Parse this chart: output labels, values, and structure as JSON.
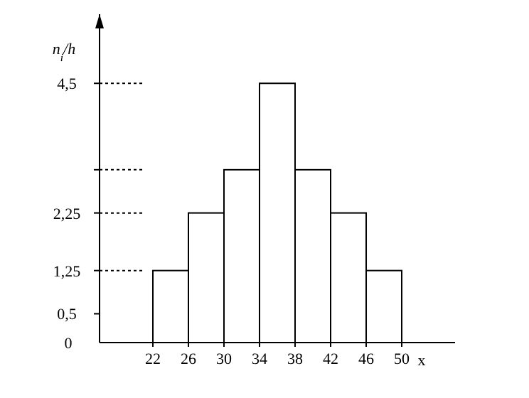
{
  "chart_data": {
    "type": "histogram",
    "xlabel": "x",
    "ylabel": "n$_{i}$/h",
    "bins": [
      22,
      26,
      30,
      34,
      38,
      42,
      46,
      50
    ],
    "values": [
      1.25,
      2.25,
      3,
      4.5,
      3,
      2.25,
      1.25
    ],
    "color": "#ffffff",
    "xlim": [
      16,
      56
    ],
    "xticks": [
      22,
      26,
      30,
      34,
      38,
      42,
      46,
      50
    ],
    "ylim": [
      0,
      5.7
    ],
    "ref_lines": [
      {
        "axis": "y",
        "value": 1.25,
        "line_style": "dotted"
      },
      {
        "axis": "y",
        "value": 2.25,
        "line_style": "dotted"
      },
      {
        "axis": "y",
        "value": 3,
        "line_style": "dotted"
      },
      {
        "axis": "y",
        "value": 4.5,
        "line_style": "dotted"
      }
    ],
    "yticks": [
      {
        "value": 0,
        "label": "0"
      },
      {
        "value": 0.5,
        "label": "0,5"
      },
      {
        "value": 1.25,
        "label": "1,25"
      },
      {
        "value": 2.25,
        "label": "2,25"
      },
      {
        "value": 3,
        "label": null
      },
      {
        "value": 4.5,
        "label": "4,5"
      }
    ]
  }
}
